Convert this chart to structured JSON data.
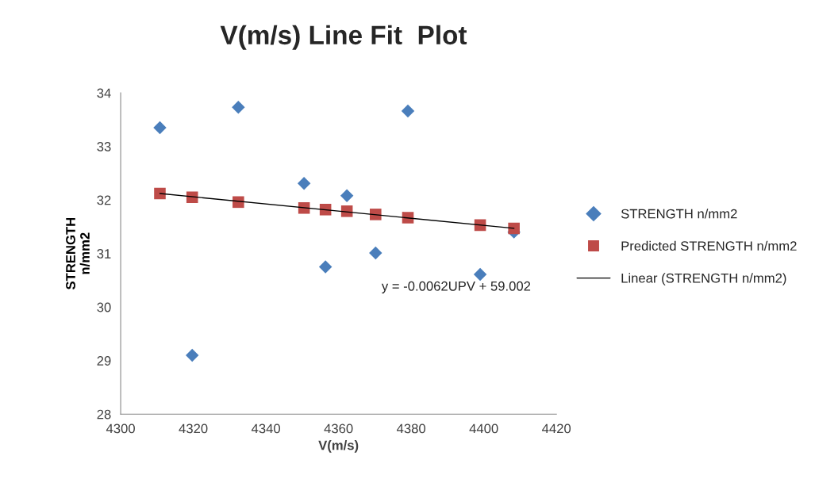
{
  "chart_data": {
    "type": "scatter",
    "title": "V(m/s) Line Fit  Plot",
    "xlabel": "V(m/s)",
    "ylabel": "STRENGTH\nn/mm2",
    "xlim": [
      4300,
      4420
    ],
    "xticks": [
      4300,
      4320,
      4340,
      4360,
      4380,
      4400,
      4420
    ],
    "ylim": [
      28,
      34
    ],
    "yticks": [
      28,
      29,
      30,
      31,
      32,
      33,
      34
    ],
    "grid": false,
    "legend": "right",
    "series": [
      {
        "name": "STRENGTH n/mm2",
        "marker": "diamond",
        "color": "#4a7ebb",
        "x": [
          4310.8,
          4319.7,
          4332.4,
          4350.5,
          4356.4,
          4362.3,
          4370.2,
          4379.1,
          4399.0,
          4408.3
        ],
        "values": [
          33.35,
          29.1,
          33.73,
          32.31,
          30.75,
          32.08,
          31.01,
          33.66,
          30.61,
          31.4
        ]
      },
      {
        "name": "Predicted STRENGTH n/mm2",
        "marker": "square",
        "color": "#be4b48",
        "x": [
          4310.8,
          4319.7,
          4332.4,
          4350.5,
          4356.4,
          4362.3,
          4370.2,
          4379.1,
          4399.0,
          4408.3
        ],
        "values": [
          32.12,
          32.05,
          31.96,
          31.85,
          31.82,
          31.79,
          31.73,
          31.67,
          31.53,
          31.47
        ]
      },
      {
        "name": "Linear (STRENGTH n/mm2)",
        "type": "line",
        "marker": "none",
        "line_style": "solid",
        "color": "#000000",
        "x": [
          4310.8,
          4408.3
        ],
        "values": [
          32.12,
          31.47
        ]
      }
    ],
    "annotations": [
      "y = -0.0062UPV + 59.002"
    ]
  }
}
